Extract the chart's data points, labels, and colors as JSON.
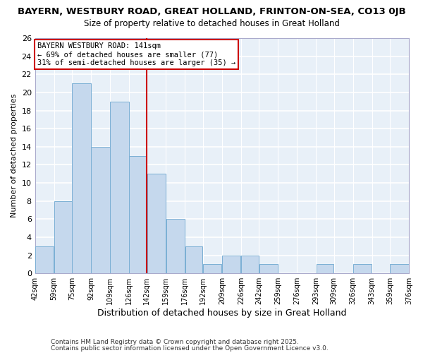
{
  "title": "BAYERN, WESTBURY ROAD, GREAT HOLLAND, FRINTON-ON-SEA, CO13 0JB",
  "subtitle": "Size of property relative to detached houses in Great Holland",
  "xlabel": "Distribution of detached houses by size in Great Holland",
  "ylabel": "Number of detached properties",
  "bar_color": "#c5d8ed",
  "bar_edge_color": "#7aafd4",
  "bg_color": "#e8f0f8",
  "grid_color": "#ffffff",
  "vline_x": 142,
  "vline_color": "#cc0000",
  "annotation_title": "BAYERN WESTBURY ROAD: 141sqm",
  "annotation_line1": "← 69% of detached houses are smaller (77)",
  "annotation_line2": "31% of semi-detached houses are larger (35) →",
  "annotation_box_color": "#ffffff",
  "annotation_box_edge": "#cc0000",
  "bins": [
    42,
    59,
    75,
    92,
    109,
    126,
    142,
    159,
    176,
    192,
    209,
    226,
    242,
    259,
    276,
    293,
    309,
    326,
    343,
    359,
    376
  ],
  "counts": [
    3,
    8,
    21,
    14,
    19,
    13,
    11,
    6,
    3,
    1,
    2,
    2,
    1,
    0,
    0,
    1,
    0,
    1,
    0,
    1
  ],
  "ylim": [
    0,
    26
  ],
  "yticks": [
    0,
    2,
    4,
    6,
    8,
    10,
    12,
    14,
    16,
    18,
    20,
    22,
    24,
    26
  ],
  "tick_labels": [
    "42sqm",
    "59sqm",
    "75sqm",
    "92sqm",
    "109sqm",
    "126sqm",
    "142sqm",
    "159sqm",
    "176sqm",
    "192sqm",
    "209sqm",
    "226sqm",
    "242sqm",
    "259sqm",
    "276sqm",
    "293sqm",
    "309sqm",
    "326sqm",
    "343sqm",
    "359sqm",
    "376sqm"
  ],
  "footer1": "Contains HM Land Registry data © Crown copyright and database right 2025.",
  "footer2": "Contains public sector information licensed under the Open Government Licence v3.0.",
  "fig_bg": "#ffffff"
}
